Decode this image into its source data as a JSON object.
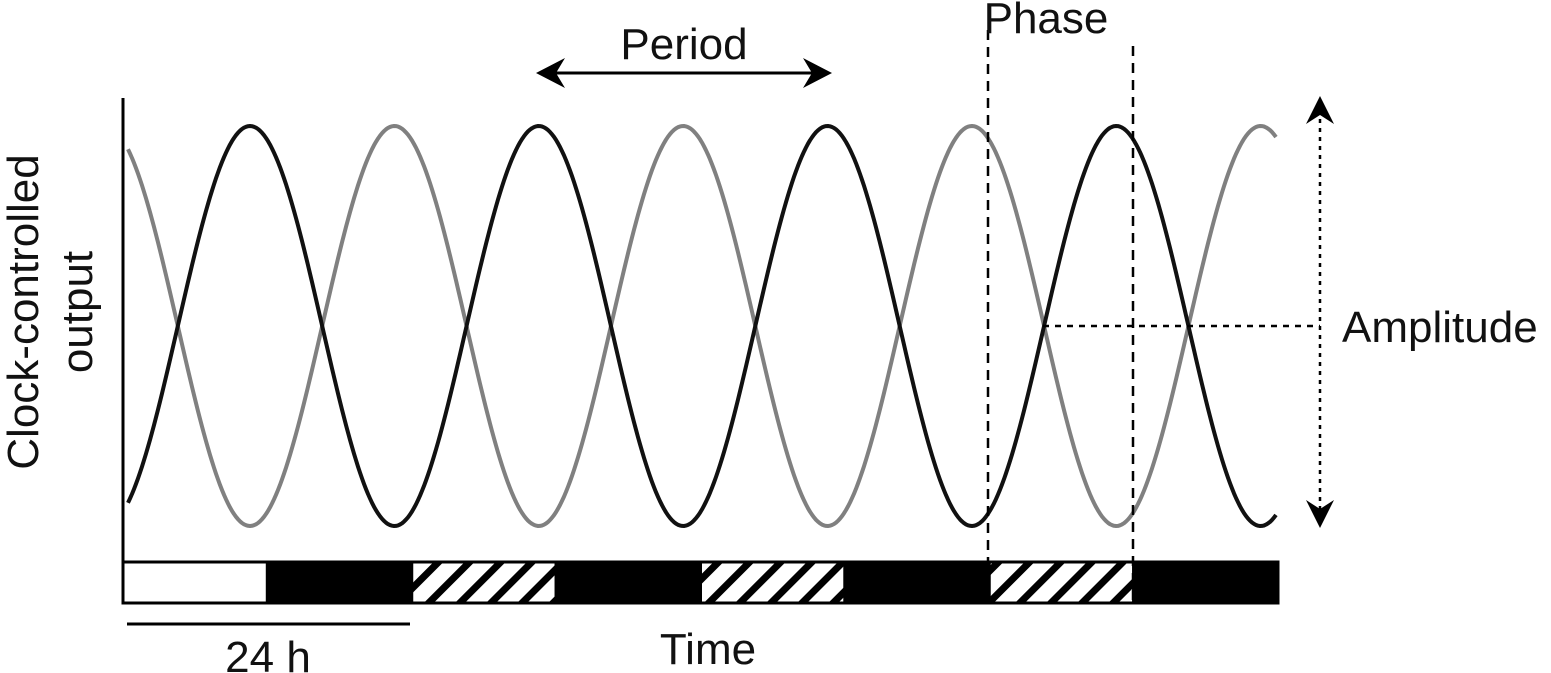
{
  "labels": {
    "period": "Period",
    "phase": "Phase",
    "amplitude": "Amplitude",
    "ylabel_line1": "Clock-controlled",
    "ylabel_line2": "output",
    "xlabel": "Time",
    "scale": "24 h"
  },
  "colors": {
    "curve_dark": "#111111",
    "curve_gray": "#808080",
    "bar_fill": "#000000",
    "axis": "#000000"
  },
  "light_dark_bar": {
    "segment_hours": 12,
    "segments": [
      "light",
      "dark",
      "hatched",
      "dark",
      "hatched",
      "dark",
      "hatched",
      "dark"
    ]
  },
  "oscillation": {
    "period_hours": 24,
    "cycles_shown": 4,
    "series": [
      "dark",
      "gray"
    ],
    "relationship": "antiphase"
  }
}
